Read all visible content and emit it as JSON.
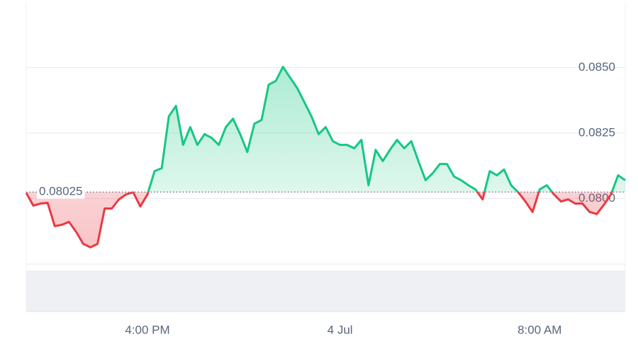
{
  "chart_data": {
    "type": "line",
    "baseline": 0.08025,
    "up_color": "#16c784",
    "down_color": "#ea3943",
    "values": [
      0.08022,
      0.07973,
      0.07981,
      0.07984,
      0.07895,
      0.079,
      0.07911,
      0.07873,
      0.07827,
      0.07814,
      0.07827,
      0.07962,
      0.07962,
      0.07997,
      0.08016,
      0.08024,
      0.0797,
      0.08016,
      0.08105,
      0.08116,
      0.08314,
      0.08354,
      0.08205,
      0.08273,
      0.08205,
      0.08246,
      0.08232,
      0.08205,
      0.08273,
      0.08305,
      0.08246,
      0.08178,
      0.08286,
      0.083,
      0.08435,
      0.08449,
      0.08503,
      0.08462,
      0.08422,
      0.08368,
      0.08314,
      0.08246,
      0.08273,
      0.08219,
      0.08205,
      0.08205,
      0.08192,
      0.08224,
      0.08051,
      0.08186,
      0.08143,
      0.08186,
      0.08224,
      0.08192,
      0.08219,
      0.08143,
      0.0807,
      0.08097,
      0.08132,
      0.08132,
      0.08084,
      0.0807,
      0.08051,
      0.08035,
      0.07997,
      0.08105,
      0.08089,
      0.08111,
      0.08051,
      0.08024,
      0.07989,
      0.07949,
      0.08035,
      0.08051,
      0.08016,
      0.07989,
      0.07997,
      0.07981,
      0.07981,
      0.07949,
      0.07941,
      0.07976,
      0.08016,
      0.08089,
      0.0807
    ],
    "xlim": [
      0,
      84
    ],
    "xticks": [
      {
        "value": 17,
        "label": "4:00 PM"
      },
      {
        "value": 44,
        "label": "4 Jul"
      },
      {
        "value": 72,
        "label": "8:00 AM"
      }
    ],
    "ylim": [
      0.0775,
      0.0875
    ],
    "yticks": [
      {
        "value": 0.08,
        "label": "0.0800"
      },
      0.0825,
      {
        "value": 0.085,
        "label": "0.0850"
      }
    ],
    "grid": true
  }
}
